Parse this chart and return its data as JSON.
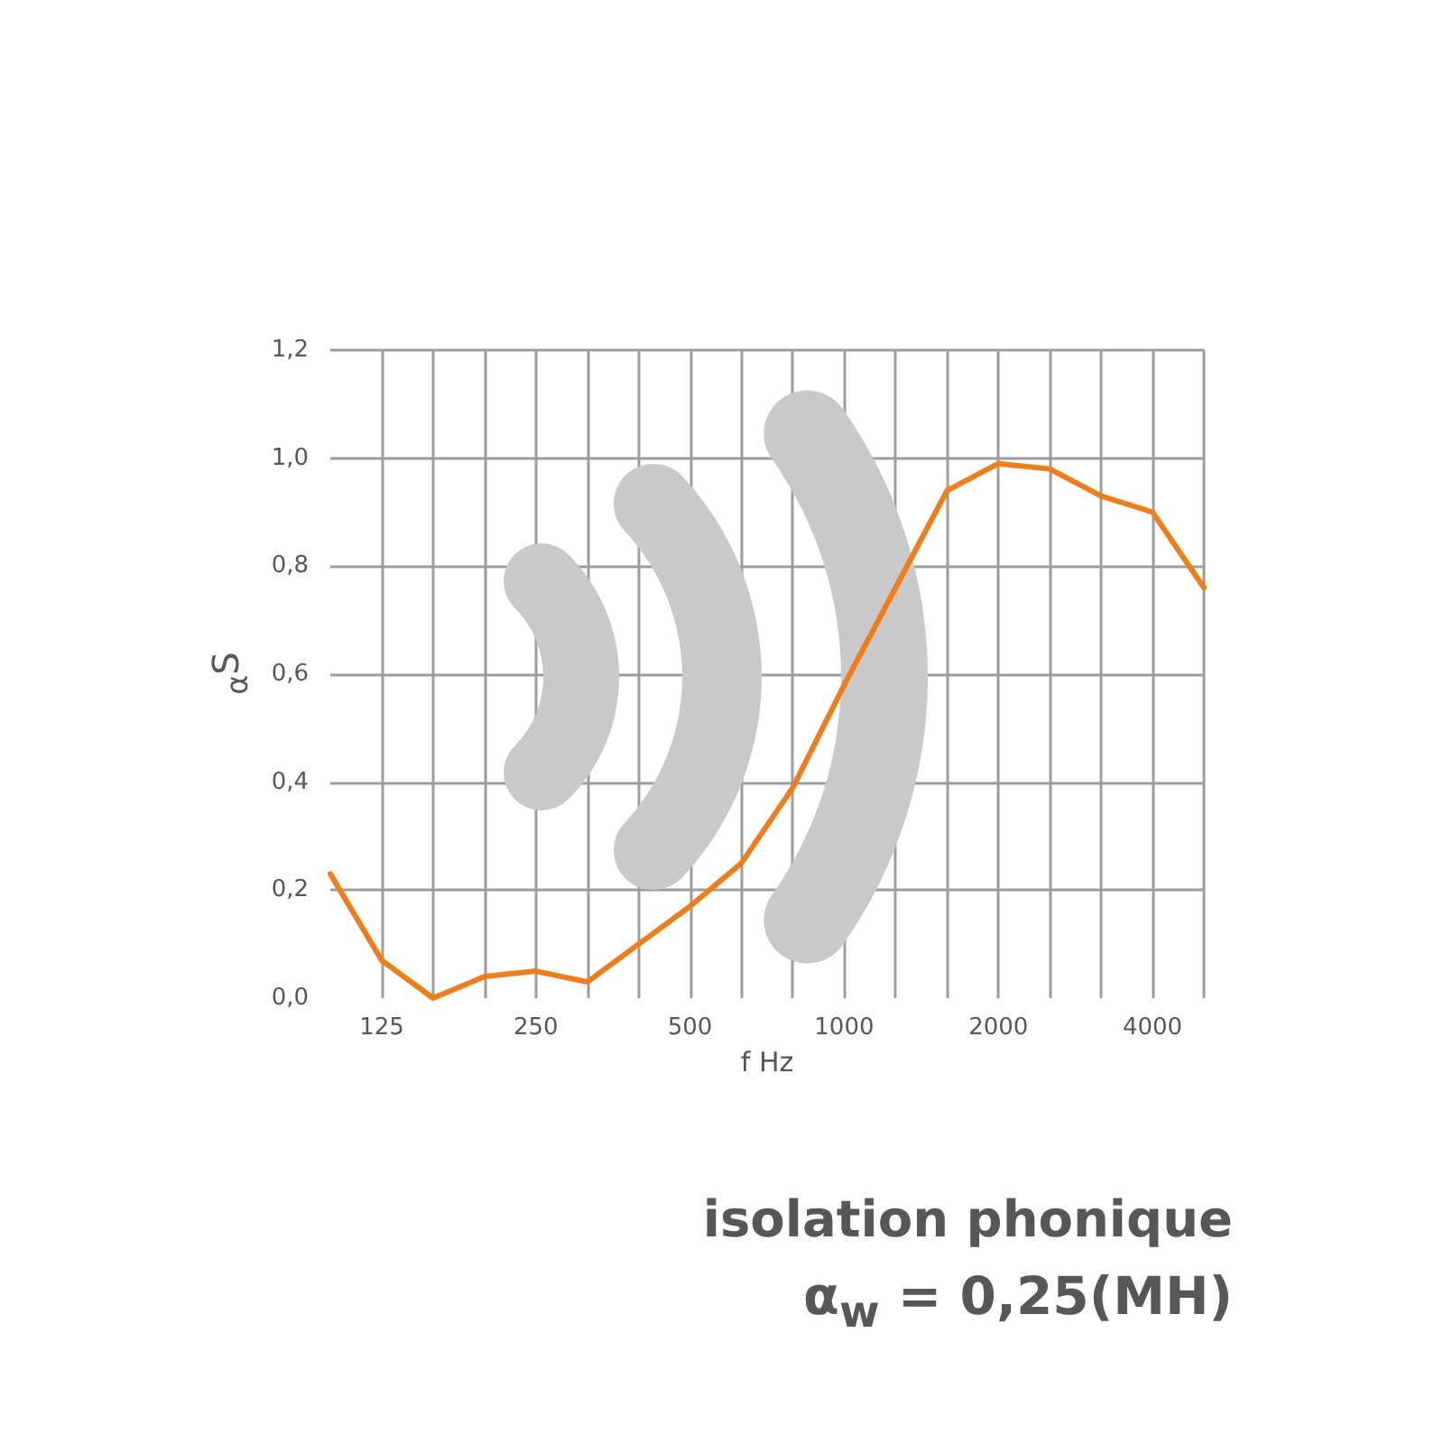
{
  "chart_data": {
    "type": "line",
    "xlabel": "f Hz",
    "ylabel": "$_{α}$S",
    "categories": [
      null,
      "125",
      null,
      null,
      "250",
      null,
      null,
      "500",
      null,
      null,
      "1000",
      null,
      null,
      "2000",
      null,
      null,
      "4000",
      null
    ],
    "series": [
      {
        "color": "#ef7d1a",
        "values": [
          0.23,
          0.07,
          0,
          0.04,
          0.05,
          0.03,
          0.1,
          0.17,
          0.25,
          0.39,
          0.58,
          0.76,
          0.94,
          0.99,
          0.98,
          0.93,
          0.9,
          0.76
        ]
      }
    ],
    "ylim": [
      0,
      1.2
    ],
    "yticks": [
      {
        "value": 0,
        "label": "0,0"
      },
      {
        "value": 0.2,
        "label": "0,2"
      },
      {
        "value": 0.4,
        "label": "0,4"
      },
      {
        "value": 0.6,
        "label": "0,6"
      },
      {
        "value": 0.8,
        "label": "0,8"
      },
      {
        "value": 1,
        "label": "1,0"
      },
      {
        "value": 1.2,
        "label": "1,2"
      }
    ],
    "grid": true,
    "annotations": [
      "isolation phonique",
      "α$_{w}$ = 0,25(MH)"
    ]
  }
}
